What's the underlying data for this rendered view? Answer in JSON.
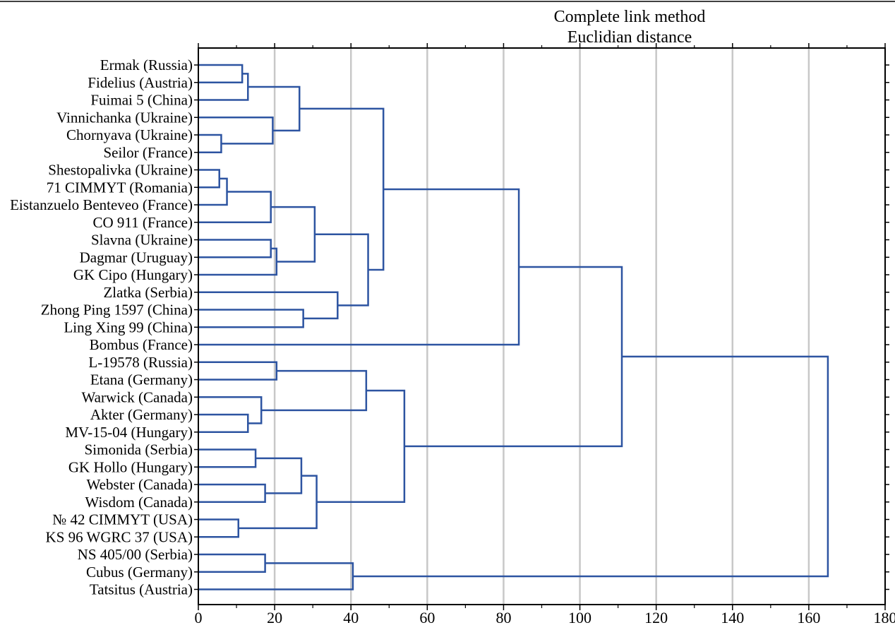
{
  "chart_data": {
    "type": "dendrogram",
    "title": "Complete link method",
    "subtitle": "Euclidian distance",
    "xlabel": "",
    "ylabel": "",
    "xlim": [
      0,
      180
    ],
    "xticks": [
      0,
      20,
      40,
      60,
      80,
      100,
      120,
      140,
      160,
      180
    ],
    "grid": "vertical",
    "line_color": "#2d54a1",
    "grid_color": "#c8c8c8",
    "leaves": [
      "Ermak (Russia)",
      "Fidelius (Austria)",
      "Fuimai 5 (China)",
      "Vinnichanka (Ukraine)",
      "Chornyava (Ukraine)",
      "Seilor (France)",
      "Shestopalivka (Ukraine)",
      "71 CIMMYT (Romania)",
      "Eistanzuelo Benteveo (France)",
      "CO 911 (France)",
      "Slavna (Ukraine)",
      "Dagmar (Uruguay)",
      "GK Cipo (Hungary)",
      "Zlatka (Serbia)",
      "Zhong Ping 1597 (China)",
      "Ling Xing 99 (China)",
      "Bombus (France)",
      "L-19578 (Russia)",
      "Etana (Germany)",
      "Warwick (Canada)",
      "Akter (Germany)",
      "MV-15-04 (Hungary)",
      "Simonida (Serbia)",
      "GK Hollo (Hungary)",
      "Webster (Canada)",
      "Wisdom (Canada)",
      "№ 42 CIMMYT (USA)",
      "KS 96 WGRC 37 (USA)",
      "NS 405/00 (Serbia)",
      "Cubus (Germany)",
      "Tatsitus (Austria)"
    ],
    "merges": [
      {
        "id": "n1",
        "a": 0,
        "b": 1,
        "h": 11.5
      },
      {
        "id": "n2",
        "a": "n1",
        "b": 2,
        "h": 13
      },
      {
        "id": "n3",
        "a": 4,
        "b": 5,
        "h": 6
      },
      {
        "id": "n4",
        "a": 3,
        "b": "n3",
        "h": 19.5
      },
      {
        "id": "n5",
        "a": "n2",
        "b": "n4",
        "h": 26.5
      },
      {
        "id": "n6",
        "a": 6,
        "b": 7,
        "h": 5.5
      },
      {
        "id": "n7",
        "a": "n6",
        "b": 8,
        "h": 7.5
      },
      {
        "id": "n8",
        "a": "n7",
        "b": 9,
        "h": 19
      },
      {
        "id": "n9",
        "a": 10,
        "b": 11,
        "h": 19
      },
      {
        "id": "n10",
        "a": "n9",
        "b": 12,
        "h": 20.5
      },
      {
        "id": "n11",
        "a": "n8",
        "b": "n10",
        "h": 30.5
      },
      {
        "id": "n12",
        "a": 14,
        "b": 15,
        "h": 27.5
      },
      {
        "id": "n13",
        "a": 13,
        "b": "n12",
        "h": 36.5
      },
      {
        "id": "n14",
        "a": "n11",
        "b": "n13",
        "h": 44.5
      },
      {
        "id": "n15",
        "a": "n5",
        "b": "n14",
        "h": 48.5
      },
      {
        "id": "n16",
        "a": "n15",
        "b": 16,
        "h": 84
      },
      {
        "id": "n17",
        "a": 17,
        "b": 18,
        "h": 20.5
      },
      {
        "id": "n18",
        "a": 20,
        "b": 21,
        "h": 13
      },
      {
        "id": "n19",
        "a": 19,
        "b": "n18",
        "h": 16.5
      },
      {
        "id": "n20",
        "a": "n17",
        "b": "n19",
        "h": 44
      },
      {
        "id": "n21",
        "a": 22,
        "b": 23,
        "h": 15
      },
      {
        "id": "n22",
        "a": 24,
        "b": 25,
        "h": 17.5
      },
      {
        "id": "n23",
        "a": "n21",
        "b": "n22",
        "h": 27
      },
      {
        "id": "n24",
        "a": 26,
        "b": 27,
        "h": 10.5
      },
      {
        "id": "n25",
        "a": "n23",
        "b": "n24",
        "h": 31
      },
      {
        "id": "n26",
        "a": "n20",
        "b": "n25",
        "h": 54
      },
      {
        "id": "n27",
        "a": "n16",
        "b": "n26",
        "h": 111
      },
      {
        "id": "n28",
        "a": 28,
        "b": 29,
        "h": 17.5
      },
      {
        "id": "n29",
        "a": "n28",
        "b": 30,
        "h": 40.5
      },
      {
        "id": "n30",
        "a": "n27",
        "b": "n29",
        "h": 165
      }
    ]
  }
}
